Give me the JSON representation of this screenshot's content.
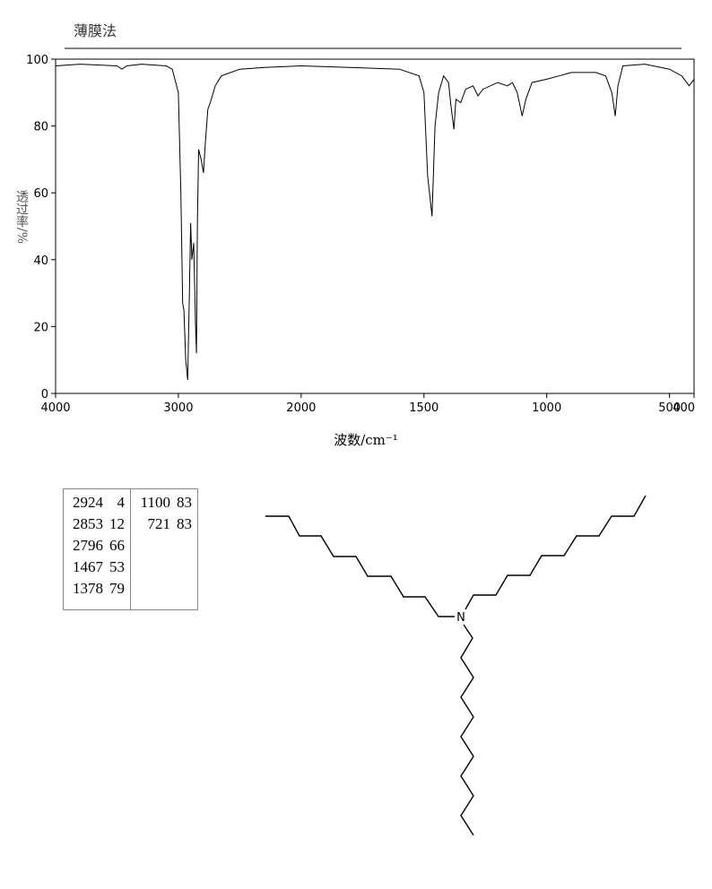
{
  "chart_data": {
    "type": "line",
    "title": "薄膜法",
    "x_label": "波数/cm⁻¹",
    "y_label": "透过率/%",
    "x": [
      4000,
      3800,
      3500,
      3460,
      3420,
      3300,
      3100,
      3050,
      3000,
      2980,
      2965,
      2955,
      2940,
      2924,
      2910,
      2900,
      2890,
      2875,
      2860,
      2853,
      2845,
      2835,
      2815,
      2796,
      2780,
      2760,
      2740,
      2700,
      2650,
      2500,
      2300,
      2000,
      1800,
      1600,
      1520,
      1500,
      1485,
      1467,
      1455,
      1440,
      1420,
      1400,
      1390,
      1378,
      1370,
      1350,
      1330,
      1300,
      1280,
      1260,
      1200,
      1160,
      1140,
      1120,
      1100,
      1085,
      1060,
      1000,
      950,
      900,
      800,
      760,
      735,
      721,
      710,
      690,
      600,
      500,
      450,
      420,
      400
    ],
    "values": [
      98,
      98.5,
      98,
      97,
      98,
      98.5,
      98,
      97,
      90,
      60,
      27,
      25,
      10,
      4,
      30,
      51,
      40,
      45,
      20,
      12,
      50,
      73,
      70,
      66,
      75,
      85,
      87,
      92,
      95,
      97,
      97.5,
      98,
      97.5,
      97,
      95,
      90,
      65,
      53,
      80,
      90,
      95,
      93,
      86,
      79,
      88,
      87,
      91,
      92,
      89,
      91,
      93,
      92,
      93,
      90,
      83,
      88,
      93,
      94,
      95,
      96,
      96,
      95,
      90,
      83,
      92,
      98,
      98.5,
      97,
      95,
      92,
      94
    ],
    "color": "#000000",
    "xlim": [
      4000,
      400
    ],
    "xticks": [
      4000,
      3000,
      2000,
      1500,
      1000,
      500,
      400
    ],
    "x_scale_break": 2000,
    "ylim": [
      0,
      100
    ],
    "yticks": [
      0,
      20,
      40,
      60,
      80,
      100
    ]
  },
  "peak_table": {
    "columns": [
      [
        [
          "2924",
          "4"
        ],
        [
          "2853",
          "12"
        ],
        [
          "2796",
          "66"
        ],
        [
          "1467",
          "53"
        ],
        [
          "1378",
          "79"
        ]
      ],
      [
        [
          "1100",
          "83"
        ],
        [
          "721",
          "83"
        ]
      ]
    ]
  },
  "structure": {
    "atom_label": "N"
  }
}
